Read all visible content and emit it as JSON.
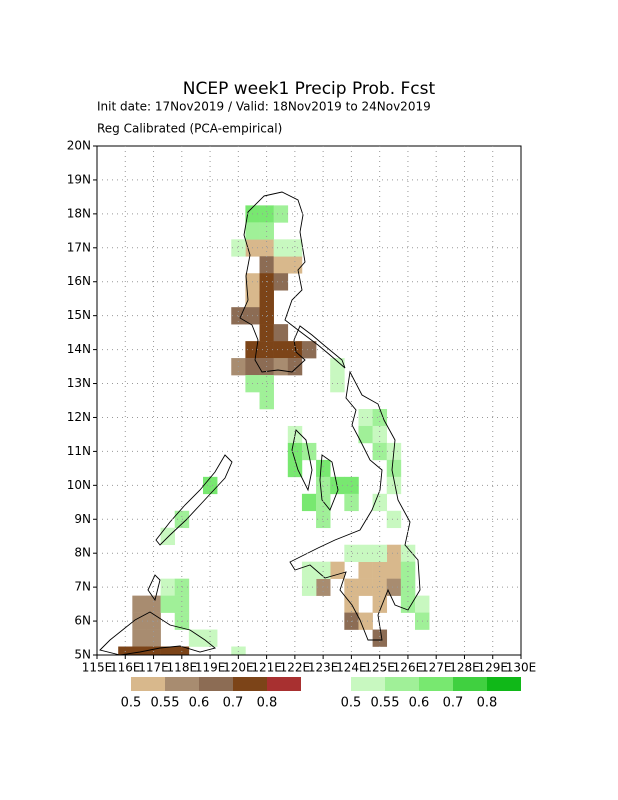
{
  "map": {
    "title": "NCEP week1 Precip Prob. Fcst",
    "subtitle": "Init date: 17Nov2019 / Valid: 18Nov2019 to 24Nov2019",
    "subtitle2": "Reg Calibrated (PCA-empirical)",
    "xlim": [
      115,
      130
    ],
    "ylim": [
      5,
      20
    ],
    "grid": true,
    "xticks": [
      {
        "value": 115,
        "label": "115E"
      },
      {
        "value": 116,
        "label": "116E"
      },
      {
        "value": 117,
        "label": "117E"
      },
      {
        "value": 118,
        "label": "118E"
      },
      {
        "value": 119,
        "label": "119E"
      },
      {
        "value": 120,
        "label": "120E"
      },
      {
        "value": 121,
        "label": "121E"
      },
      {
        "value": 122,
        "label": "122E"
      },
      {
        "value": 123,
        "label": "123E"
      },
      {
        "value": 124,
        "label": "124E"
      },
      {
        "value": 125,
        "label": "125E"
      },
      {
        "value": 126,
        "label": "126E"
      },
      {
        "value": 127,
        "label": "127E"
      },
      {
        "value": 128,
        "label": "128E"
      },
      {
        "value": 129,
        "label": "129E"
      },
      {
        "value": 130,
        "label": "130E"
      }
    ],
    "yticks": [
      {
        "value": 5,
        "label": "5N"
      },
      {
        "value": 6,
        "label": "6N"
      },
      {
        "value": 7,
        "label": "7N"
      },
      {
        "value": 8,
        "label": "8N"
      },
      {
        "value": 9,
        "label": "9N"
      },
      {
        "value": 10,
        "label": "10N"
      },
      {
        "value": 11,
        "label": "11N"
      },
      {
        "value": 12,
        "label": "12N"
      },
      {
        "value": 13,
        "label": "13N"
      },
      {
        "value": 14,
        "label": "14N"
      },
      {
        "value": 15,
        "label": "15N"
      },
      {
        "value": 16,
        "label": "16N"
      },
      {
        "value": 17,
        "label": "17N"
      },
      {
        "value": 18,
        "label": "18N"
      },
      {
        "value": 19,
        "label": "19N"
      },
      {
        "value": 20,
        "label": "20N"
      }
    ],
    "below": {
      "levels": [
        0.5,
        0.55,
        0.6,
        0.7,
        0.8
      ],
      "colors": [
        "#d8b88c",
        "#a88c70",
        "#8c6c54",
        "#7c4418",
        "#a83030"
      ]
    },
    "above": {
      "levels": [
        0.5,
        0.55,
        0.6,
        0.7,
        0.8
      ],
      "colors": [
        "#c8f8c0",
        "#a0f098",
        "#78e870",
        "#40d040",
        "#10b818"
      ]
    },
    "cells_below": [
      {
        "lon": 120.5,
        "lat": 17,
        "p": 0.5
      },
      {
        "lon": 121,
        "lat": 17,
        "p": 0.5
      },
      {
        "lon": 121,
        "lat": 16.5,
        "p": 0.6
      },
      {
        "lon": 121.5,
        "lat": 16.5,
        "p": 0.5
      },
      {
        "lon": 122,
        "lat": 16.5,
        "p": 0.5
      },
      {
        "lon": 120.5,
        "lat": 16,
        "p": 0.5
      },
      {
        "lon": 121,
        "lat": 16,
        "p": 0.7
      },
      {
        "lon": 121.5,
        "lat": 16,
        "p": 0.6
      },
      {
        "lon": 120.5,
        "lat": 15.5,
        "p": 0.5
      },
      {
        "lon": 121,
        "lat": 15.5,
        "p": 0.7
      },
      {
        "lon": 120,
        "lat": 15,
        "p": 0.6
      },
      {
        "lon": 120.5,
        "lat": 15,
        "p": 0.6
      },
      {
        "lon": 121,
        "lat": 15,
        "p": 0.7
      },
      {
        "lon": 121,
        "lat": 14.5,
        "p": 0.7
      },
      {
        "lon": 121.5,
        "lat": 14.5,
        "p": 0.6
      },
      {
        "lon": 120.5,
        "lat": 14,
        "p": 0.7
      },
      {
        "lon": 121,
        "lat": 14,
        "p": 0.7
      },
      {
        "lon": 121.5,
        "lat": 14,
        "p": 0.7
      },
      {
        "lon": 122,
        "lat": 14,
        "p": 0.7
      },
      {
        "lon": 122.5,
        "lat": 14,
        "p": 0.6
      },
      {
        "lon": 120,
        "lat": 13.5,
        "p": 0.55
      },
      {
        "lon": 120.5,
        "lat": 13.5,
        "p": 0.6
      },
      {
        "lon": 121,
        "lat": 13.5,
        "p": 0.6
      },
      {
        "lon": 121.5,
        "lat": 13.5,
        "p": 0.55
      },
      {
        "lon": 122,
        "lat": 13.5,
        "p": 0.6
      },
      {
        "lon": 125.5,
        "lat": 8,
        "p": 0.5
      },
      {
        "lon": 123.5,
        "lat": 7.5,
        "p": 0.5
      },
      {
        "lon": 124.5,
        "lat": 7.5,
        "p": 0.5
      },
      {
        "lon": 125,
        "lat": 7.5,
        "p": 0.5
      },
      {
        "lon": 125.5,
        "lat": 7.5,
        "p": 0.5
      },
      {
        "lon": 123,
        "lat": 7,
        "p": 0.55
      },
      {
        "lon": 124,
        "lat": 7,
        "p": 0.5
      },
      {
        "lon": 124.5,
        "lat": 7,
        "p": 0.5
      },
      {
        "lon": 125,
        "lat": 7,
        "p": 0.5
      },
      {
        "lon": 125.5,
        "lat": 7,
        "p": 0.55
      },
      {
        "lon": 124,
        "lat": 6.5,
        "p": 0.5
      },
      {
        "lon": 125,
        "lat": 6.5,
        "p": 0.5
      },
      {
        "lon": 124,
        "lat": 6,
        "p": 0.6
      },
      {
        "lon": 124.5,
        "lat": 6,
        "p": 0.5
      },
      {
        "lon": 125,
        "lat": 5.5,
        "p": 0.6
      },
      {
        "lon": 116.5,
        "lat": 6.5,
        "p": 0.55
      },
      {
        "lon": 117,
        "lat": 6.5,
        "p": 0.55
      },
      {
        "lon": 116.5,
        "lat": 6,
        "p": 0.55
      },
      {
        "lon": 117,
        "lat": 6,
        "p": 0.55
      },
      {
        "lon": 116.5,
        "lat": 5.5,
        "p": 0.55
      },
      {
        "lon": 117,
        "lat": 5.5,
        "p": 0.55
      },
      {
        "lon": 116,
        "lat": 5,
        "p": 0.7
      },
      {
        "lon": 116.5,
        "lat": 5,
        "p": 0.7
      },
      {
        "lon": 117,
        "lat": 5,
        "p": 0.7
      },
      {
        "lon": 117.5,
        "lat": 5,
        "p": 0.7
      },
      {
        "lon": 118,
        "lat": 5,
        "p": 0.7
      }
    ],
    "cells_above": [
      {
        "lon": 120.5,
        "lat": 18,
        "p": 0.6
      },
      {
        "lon": 121,
        "lat": 18,
        "p": 0.6
      },
      {
        "lon": 121.5,
        "lat": 18,
        "p": 0.55
      },
      {
        "lon": 120.5,
        "lat": 17.5,
        "p": 0.55
      },
      {
        "lon": 121,
        "lat": 17.5,
        "p": 0.55
      },
      {
        "lon": 121.5,
        "lat": 17,
        "p": 0.5
      },
      {
        "lon": 122,
        "lat": 17,
        "p": 0.5
      },
      {
        "lon": 120,
        "lat": 17,
        "p": 0.5
      },
      {
        "lon": 123.5,
        "lat": 13.5,
        "p": 0.5
      },
      {
        "lon": 120.5,
        "lat": 13,
        "p": 0.55
      },
      {
        "lon": 121,
        "lat": 13,
        "p": 0.55
      },
      {
        "lon": 123.5,
        "lat": 13,
        "p": 0.5
      },
      {
        "lon": 121,
        "lat": 12.5,
        "p": 0.55
      },
      {
        "lon": 124.5,
        "lat": 12,
        "p": 0.5
      },
      {
        "lon": 125,
        "lat": 12,
        "p": 0.55
      },
      {
        "lon": 122,
        "lat": 11.5,
        "p": 0.5
      },
      {
        "lon": 124.5,
        "lat": 11.5,
        "p": 0.55
      },
      {
        "lon": 125,
        "lat": 11.5,
        "p": 0.5
      },
      {
        "lon": 122,
        "lat": 11,
        "p": 0.6
      },
      {
        "lon": 122.5,
        "lat": 11,
        "p": 0.55
      },
      {
        "lon": 125,
        "lat": 11,
        "p": 0.55
      },
      {
        "lon": 125.5,
        "lat": 11,
        "p": 0.5
      },
      {
        "lon": 122,
        "lat": 10.5,
        "p": 0.6
      },
      {
        "lon": 123,
        "lat": 10.5,
        "p": 0.6
      },
      {
        "lon": 125.5,
        "lat": 10.5,
        "p": 0.55
      },
      {
        "lon": 123,
        "lat": 10,
        "p": 0.55
      },
      {
        "lon": 123.5,
        "lat": 10,
        "p": 0.6
      },
      {
        "lon": 124,
        "lat": 10,
        "p": 0.6
      },
      {
        "lon": 125.5,
        "lat": 10,
        "p": 0.5
      },
      {
        "lon": 122.5,
        "lat": 9.5,
        "p": 0.6
      },
      {
        "lon": 123,
        "lat": 9.5,
        "p": 0.55
      },
      {
        "lon": 124,
        "lat": 9.5,
        "p": 0.55
      },
      {
        "lon": 125,
        "lat": 9.5,
        "p": 0.5
      },
      {
        "lon": 123,
        "lat": 9,
        "p": 0.55
      },
      {
        "lon": 125.5,
        "lat": 9,
        "p": 0.5
      },
      {
        "lon": 119,
        "lat": 10,
        "p": 0.6
      },
      {
        "lon": 118,
        "lat": 9,
        "p": 0.55
      },
      {
        "lon": 117.5,
        "lat": 8.5,
        "p": 0.5
      },
      {
        "lon": 124,
        "lat": 8,
        "p": 0.5
      },
      {
        "lon": 124.5,
        "lat": 8,
        "p": 0.5
      },
      {
        "lon": 125,
        "lat": 8,
        "p": 0.5
      },
      {
        "lon": 126,
        "lat": 8,
        "p": 0.5
      },
      {
        "lon": 122.5,
        "lat": 7.5,
        "p": 0.5
      },
      {
        "lon": 123,
        "lat": 7.5,
        "p": 0.5
      },
      {
        "lon": 126,
        "lat": 7.5,
        "p": 0.55
      },
      {
        "lon": 122.5,
        "lat": 7,
        "p": 0.5
      },
      {
        "lon": 126,
        "lat": 7,
        "p": 0.55
      },
      {
        "lon": 126,
        "lat": 6.5,
        "p": 0.55
      },
      {
        "lon": 126.5,
        "lat": 6.5,
        "p": 0.5
      },
      {
        "lon": 126.5,
        "lat": 6,
        "p": 0.55
      },
      {
        "lon": 117.5,
        "lat": 7,
        "p": 0.5
      },
      {
        "lon": 118,
        "lat": 7,
        "p": 0.55
      },
      {
        "lon": 117.5,
        "lat": 6.5,
        "p": 0.55
      },
      {
        "lon": 118,
        "lat": 6.5,
        "p": 0.55
      },
      {
        "lon": 118,
        "lat": 6,
        "p": 0.55
      },
      {
        "lon": 118.5,
        "lat": 5.5,
        "p": 0.5
      },
      {
        "lon": 119,
        "lat": 5.5,
        "p": 0.5
      },
      {
        "lon": 120,
        "lat": 5,
        "p": 0.5
      }
    ]
  }
}
